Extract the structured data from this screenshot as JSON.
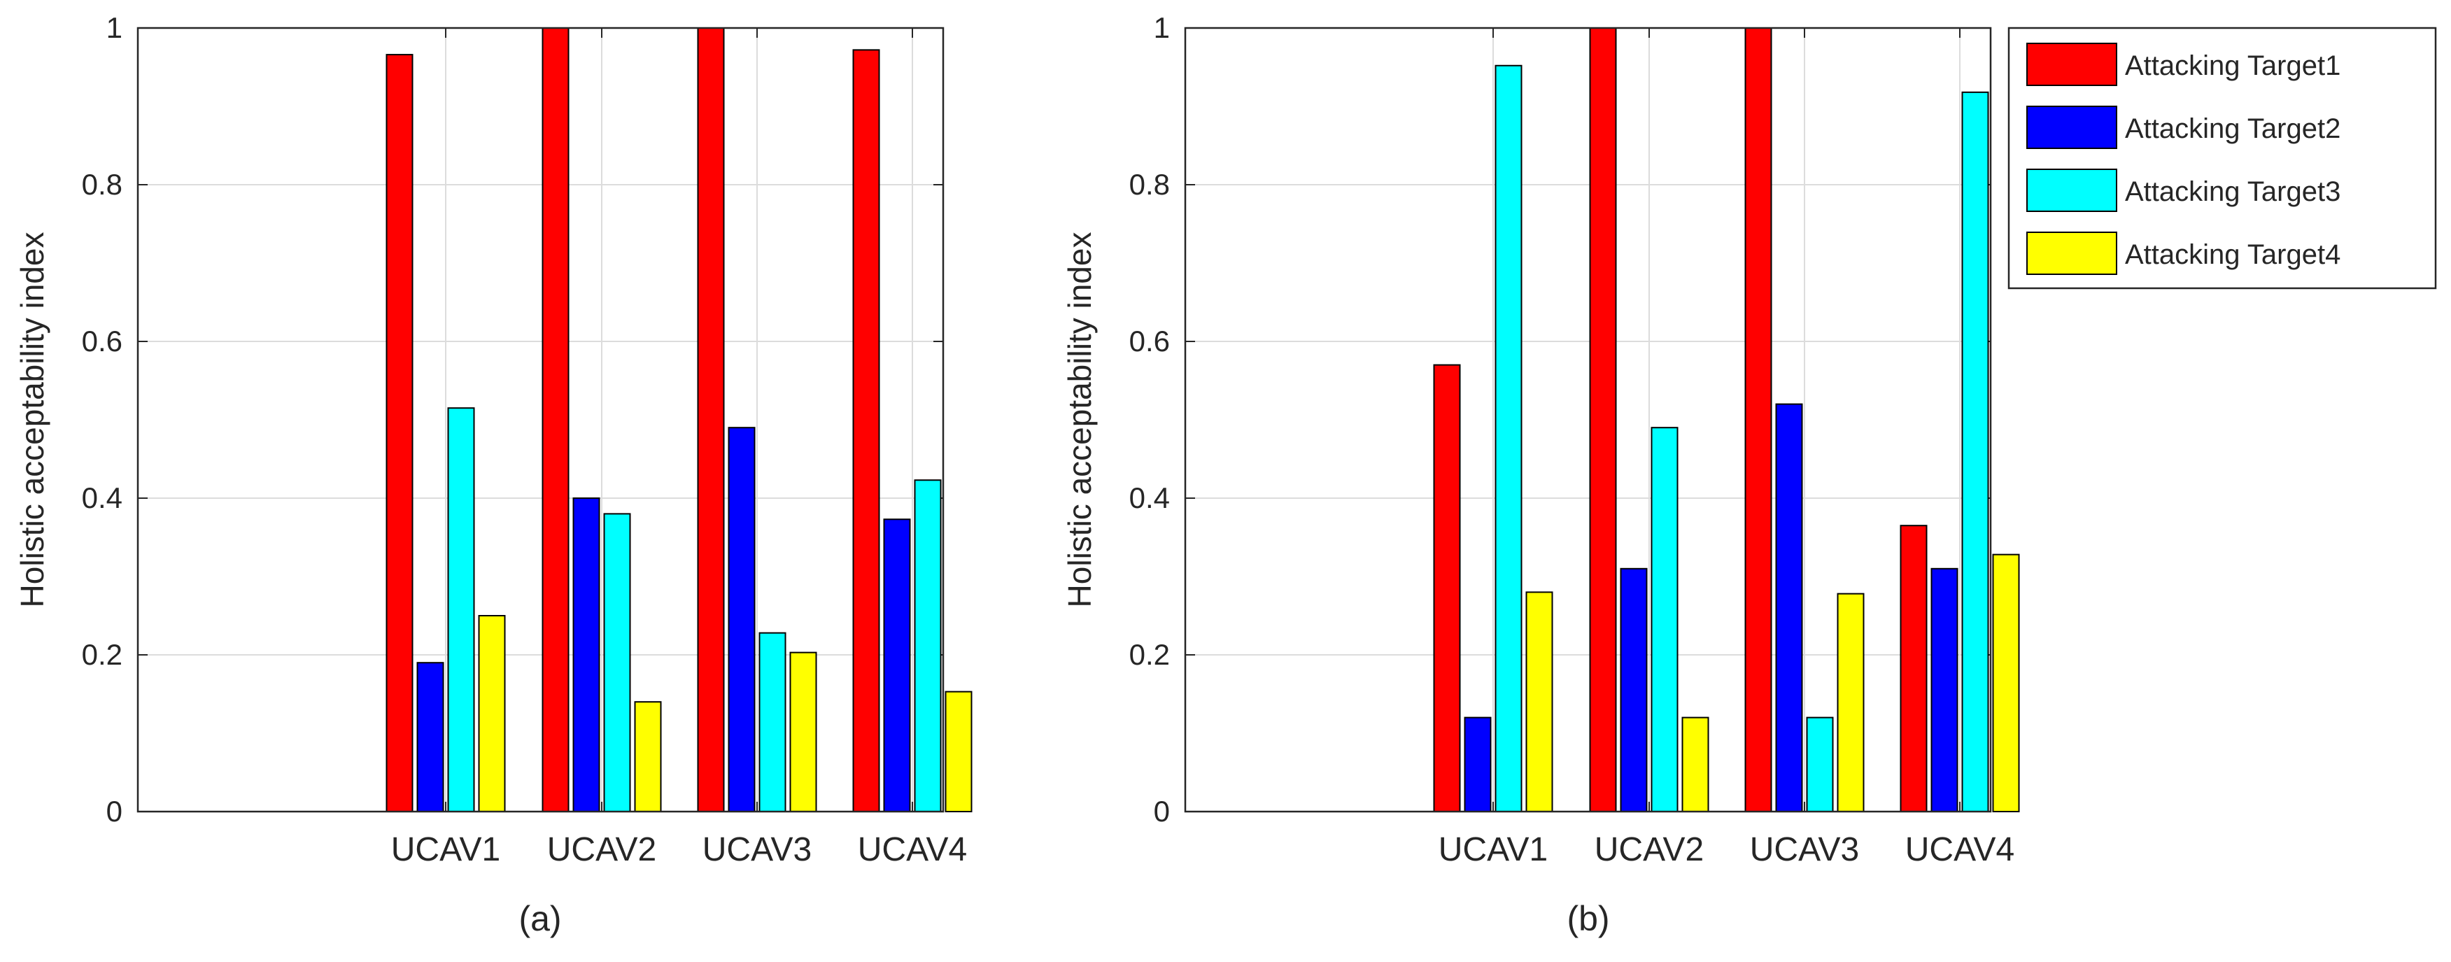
{
  "chart_data": [
    {
      "type": "bar",
      "panel_label": "(a)",
      "categories": [
        "UCAV1",
        "UCAV2",
        "UCAV3",
        "UCAV4"
      ],
      "series": [
        {
          "name": "Attacking Target1",
          "color": "#ff0000",
          "values": [
            0.966,
            1.0,
            1.0,
            0.972
          ]
        },
        {
          "name": "Attacking Target2",
          "color": "#0000ff",
          "values": [
            0.19,
            0.4,
            0.49,
            0.373
          ]
        },
        {
          "name": "Attacking Target3",
          "color": "#00ffff",
          "values": [
            0.515,
            0.38,
            0.228,
            0.423
          ]
        },
        {
          "name": "Attacking Target4",
          "color": "#ffff00",
          "values": [
            0.25,
            0.14,
            0.203,
            0.153
          ]
        }
      ],
      "ylabel": "Holistic acceptability index",
      "ylim": [
        0,
        1
      ],
      "yticks": [
        "0",
        "0.2",
        "0.4",
        "0.6",
        "0.8",
        "1"
      ],
      "grid": true
    },
    {
      "type": "bar",
      "panel_label": "(b)",
      "categories": [
        "UCAV1",
        "UCAV2",
        "UCAV3",
        "UCAV4"
      ],
      "series": [
        {
          "name": "Attacking Target1",
          "color": "#ff0000",
          "values": [
            0.57,
            1.0,
            1.0,
            0.365
          ]
        },
        {
          "name": "Attacking Target2",
          "color": "#0000ff",
          "values": [
            0.12,
            0.31,
            0.52,
            0.31
          ]
        },
        {
          "name": "Attacking Target3",
          "color": "#00ffff",
          "values": [
            0.952,
            0.49,
            0.12,
            0.918
          ]
        },
        {
          "name": "Attacking Target4",
          "color": "#ffff00",
          "values": [
            0.28,
            0.12,
            0.278,
            0.328
          ]
        }
      ],
      "ylabel": "Holistic acceptability index",
      "ylim": [
        0,
        1
      ],
      "yticks": [
        "0",
        "0.2",
        "0.4",
        "0.6",
        "0.8",
        "1"
      ],
      "grid": true,
      "legend": {
        "position": "outside-right-top",
        "entries": [
          "Attacking Target1",
          "Attacking Target2",
          "Attacking Target3",
          "Attacking Target4"
        ]
      }
    }
  ]
}
